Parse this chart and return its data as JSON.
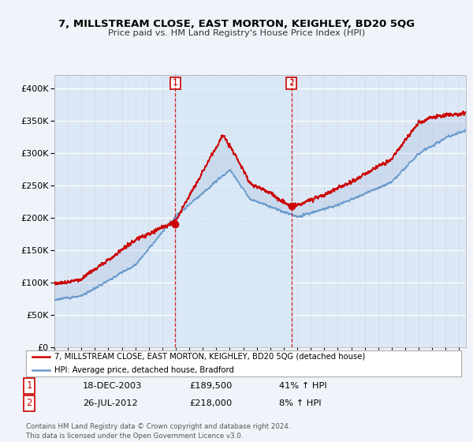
{
  "title": "7, MILLSTREAM CLOSE, EAST MORTON, KEIGHLEY, BD20 5QG",
  "subtitle": "Price paid vs. HM Land Registry's House Price Index (HPI)",
  "legend_label_red": "7, MILLSTREAM CLOSE, EAST MORTON, KEIGHLEY, BD20 5QG (detached house)",
  "legend_label_blue": "HPI: Average price, detached house, Bradford",
  "sale1_label": "1",
  "sale1_date": "18-DEC-2003",
  "sale1_price": "£189,500",
  "sale1_hpi": "41% ↑ HPI",
  "sale2_label": "2",
  "sale2_date": "26-JUL-2012",
  "sale2_price": "£218,000",
  "sale2_hpi": "8% ↑ HPI",
  "footer": "Contains HM Land Registry data © Crown copyright and database right 2024.\nThis data is licensed under the Open Government Licence v3.0.",
  "ylim": [
    0,
    420000
  ],
  "yticks": [
    0,
    50000,
    100000,
    150000,
    200000,
    250000,
    300000,
    350000,
    400000
  ],
  "xlim_start": 1995.0,
  "xlim_end": 2025.5,
  "sale1_x": 2003.96,
  "sale1_y": 189500,
  "sale2_x": 2012.56,
  "sale2_y": 218000,
  "background_color": "#f0f4fa",
  "plot_bg_color": "#dce8f5",
  "red_color": "#cc0000",
  "blue_color": "#6699cc",
  "fill_color": "#c8d8ee"
}
